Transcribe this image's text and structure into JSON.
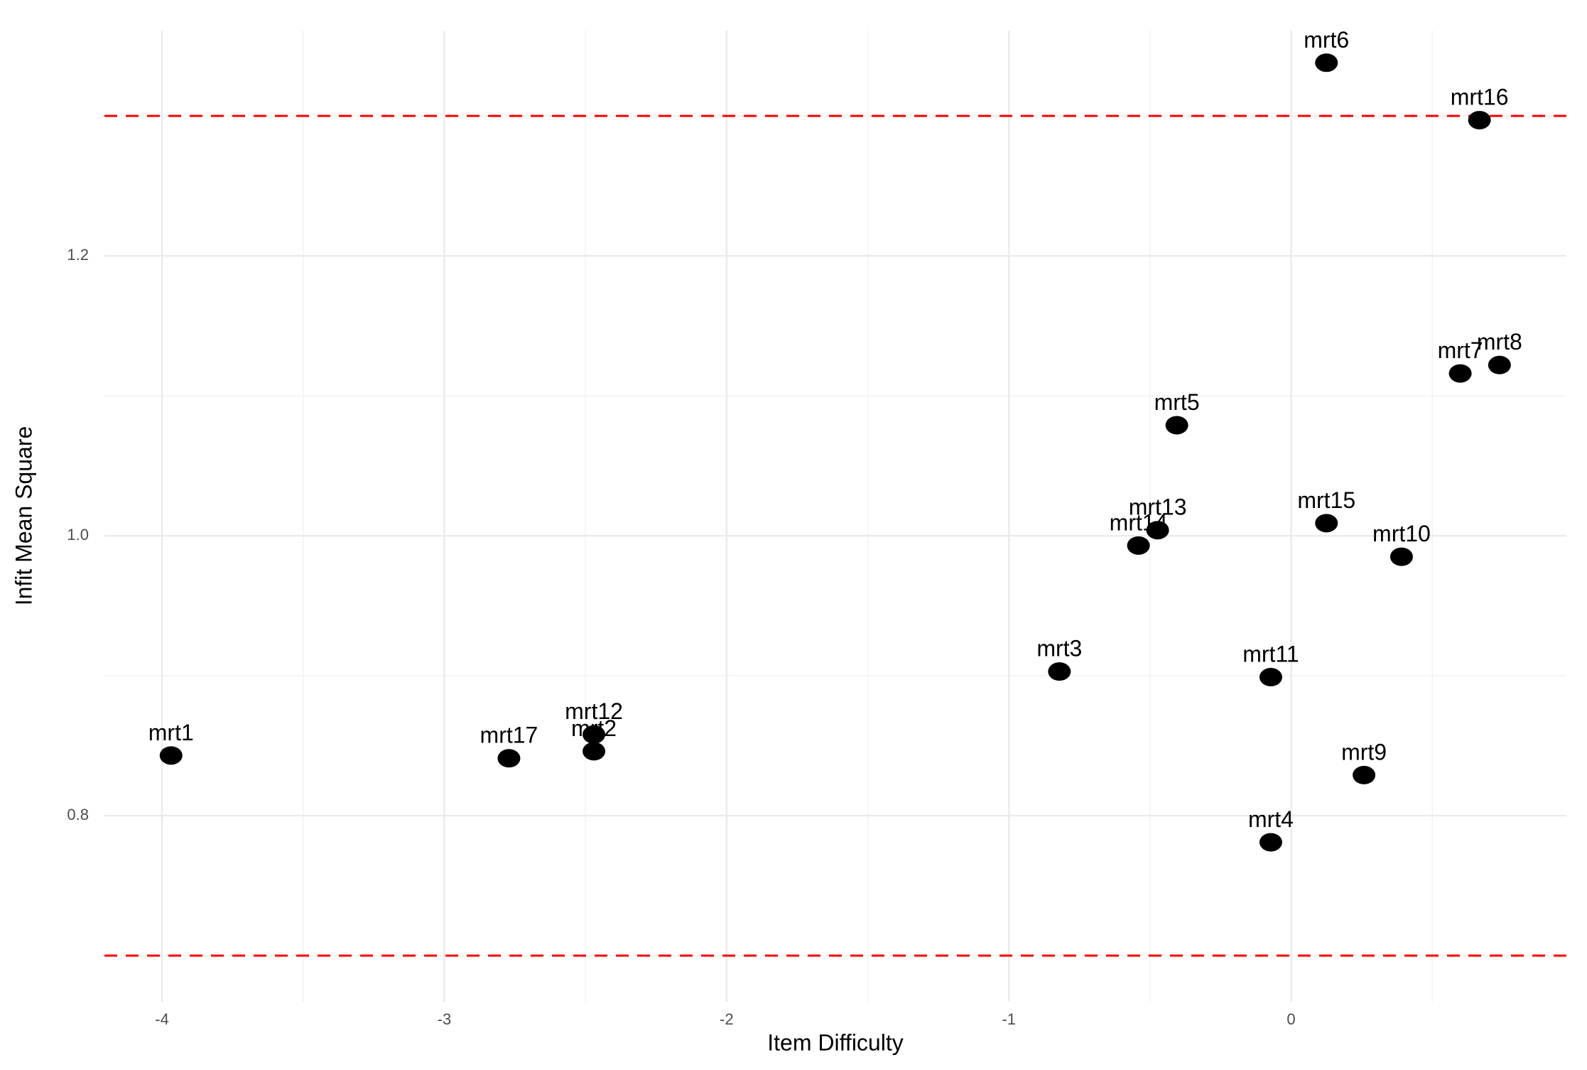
{
  "chart_data": {
    "type": "scatter",
    "x_label": "Item Difficulty",
    "y_label": "Infit Mean Square",
    "xlim": [
      -4.204,
      0.975
    ],
    "ylim": [
      0.667,
      1.361
    ],
    "xticks": [
      -4,
      -3,
      -2,
      -1,
      0
    ],
    "yticks": [
      {
        "value": 0.8,
        "label": "0.8"
      },
      {
        "value": 1.0,
        "label": "1.0"
      },
      {
        "value": 1.2,
        "label": "1.2"
      }
    ],
    "grid": true,
    "hlines": [
      0.7,
      1.3
    ],
    "hline_color": "#ff0000",
    "color": "#000000",
    "series": [
      {
        "labels": [
          "mrt1",
          "mrt17",
          "mrt12",
          "mrt2",
          "mrt3",
          "mrt14",
          "mrt13",
          "mrt5",
          "mrt11",
          "mrt4",
          "mrt15",
          "mrt9",
          "mrt10",
          "mrt7",
          "mrt8",
          "mrt16",
          "mrt6"
        ],
        "x": [
          -3.968,
          -2.771,
          -2.47,
          -2.47,
          -0.821,
          -0.541,
          -0.473,
          -0.405,
          -0.072,
          -0.072,
          0.125,
          0.258,
          0.391,
          0.599,
          0.738,
          0.667,
          0.125
        ],
        "values": [
          0.843,
          0.841,
          0.858,
          0.846,
          0.903,
          0.993,
          1.004,
          1.079,
          0.899,
          0.781,
          1.009,
          0.829,
          0.985,
          1.116,
          1.122,
          1.297,
          1.338
        ]
      }
    ]
  }
}
